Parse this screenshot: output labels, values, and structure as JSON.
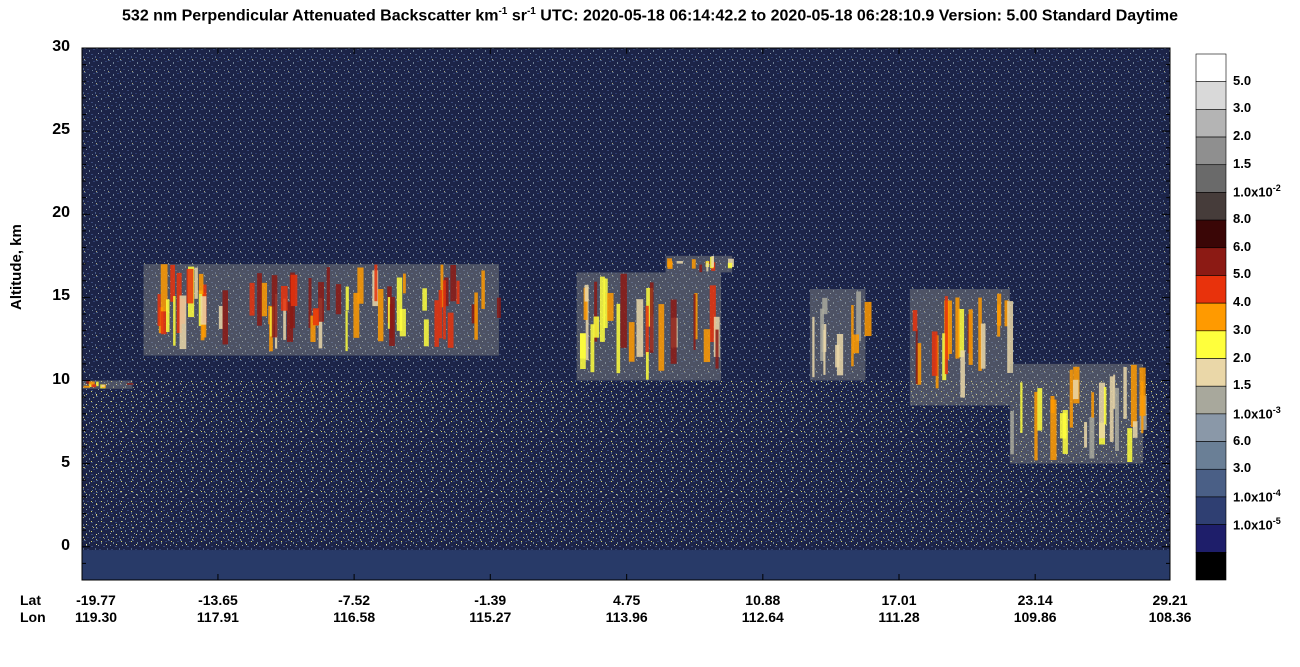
{
  "chart_data": {
    "type": "heatmap",
    "title_main": "532 nm Perpendicular Attenuated Backscatter km",
    "title_sup1": "-1",
    "title_mid": " sr",
    "title_sup2": "-1",
    "title_rest": "  UTC: 2020-05-18 06:14:42.2 to 2020-05-18 06:28:10.9  Version: 5.00 Standard Daytime",
    "ylabel": "Altitude, km",
    "ylim": [
      -2,
      30
    ],
    "yticks": [
      "30",
      "25",
      "20",
      "15",
      "10",
      "5",
      "0"
    ],
    "x_header_lat": "Lat",
    "x_header_lon": "Lon",
    "lat": [
      "-19.77",
      "-13.65",
      "-7.52",
      "-1.39",
      "4.75",
      "10.88",
      "17.01",
      "23.14",
      "29.21"
    ],
    "lon": [
      "119.30",
      "117.91",
      "116.58",
      "115.27",
      "113.96",
      "112.64",
      "111.28",
      "109.86",
      "108.36"
    ],
    "colorbar": {
      "labels": [
        {
          "base": "5.0",
          "exp": ""
        },
        {
          "base": "3.0",
          "exp": ""
        },
        {
          "base": "2.0",
          "exp": ""
        },
        {
          "base": "1.5",
          "exp": ""
        },
        {
          "base": "1.0x10",
          "exp": "-2"
        },
        {
          "base": "8.0",
          "exp": ""
        },
        {
          "base": "6.0",
          "exp": ""
        },
        {
          "base": "5.0",
          "exp": ""
        },
        {
          "base": "4.0",
          "exp": ""
        },
        {
          "base": "3.0",
          "exp": ""
        },
        {
          "base": "2.0",
          "exp": ""
        },
        {
          "base": "1.5",
          "exp": ""
        },
        {
          "base": "1.0x10",
          "exp": "-3"
        },
        {
          "base": "6.0",
          "exp": ""
        },
        {
          "base": "3.0",
          "exp": ""
        },
        {
          "base": "1.0x10",
          "exp": "-4"
        },
        {
          "base": "1.0x10",
          "exp": "-5"
        }
      ],
      "colors": [
        "#ffffff",
        "#d9d9d9",
        "#b4b4b4",
        "#8f8f8f",
        "#6a6a6a",
        "#463c3a",
        "#3a0606",
        "#8c1a14",
        "#e8320c",
        "#ff9a00",
        "#ffff3c",
        "#ead7a8",
        "#a8a89c",
        "#8a98a8",
        "#6a7f96",
        "#4a5f86",
        "#2f3f72",
        "#1e1e6a",
        "#000000"
      ]
    },
    "cloud_regions": [
      {
        "lat_from": -19.77,
        "lat_to": -17.5,
        "alt_from": 9.5,
        "alt_to": 10.0,
        "level": "high"
      },
      {
        "lat_from": -17.0,
        "lat_to": -1.0,
        "alt_from": 11.5,
        "alt_to": 17.0,
        "level": "high"
      },
      {
        "lat_from": 2.5,
        "lat_to": 9.0,
        "alt_from": 10.0,
        "alt_to": 16.5,
        "level": "high"
      },
      {
        "lat_from": 6.5,
        "lat_to": 9.5,
        "alt_from": 16.5,
        "alt_to": 17.5,
        "level": "high"
      },
      {
        "lat_from": 13.0,
        "lat_to": 15.5,
        "alt_from": 10.0,
        "alt_to": 15.5,
        "level": "medium"
      },
      {
        "lat_from": 17.5,
        "lat_to": 22.0,
        "alt_from": 8.5,
        "alt_to": 15.5,
        "level": "high"
      },
      {
        "lat_from": 22.0,
        "lat_to": 28.0,
        "alt_from": 5.0,
        "alt_to": 11.0,
        "level": "medium"
      }
    ]
  }
}
